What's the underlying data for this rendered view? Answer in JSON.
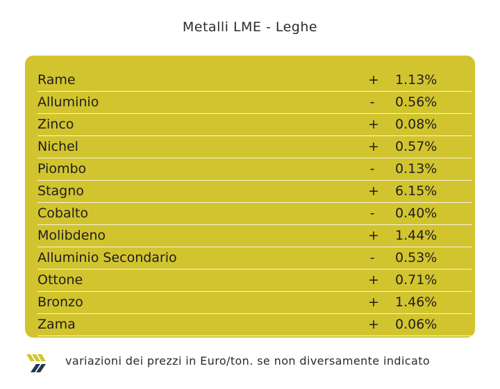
{
  "header": {
    "title": "Metalli LME - Leghe"
  },
  "table": {
    "rows": [
      {
        "name": "Rame",
        "sign": "+",
        "value": "1.13%"
      },
      {
        "name": "Alluminio",
        "sign": "-",
        "value": "0.56%"
      },
      {
        "name": "Zinco",
        "sign": "+",
        "value": "0.08%"
      },
      {
        "name": "Nichel",
        "sign": "+",
        "value": "0.57%"
      },
      {
        "name": "Piombo",
        "sign": "-",
        "value": "0.13%"
      },
      {
        "name": "Stagno",
        "sign": "+",
        "value": "6.15%"
      },
      {
        "name": "Cobalto",
        "sign": "-",
        "value": "0.40%"
      },
      {
        "name": "Molibdeno",
        "sign": "+",
        "value": "1.44%"
      },
      {
        "name": "Alluminio Secondario",
        "sign": "-",
        "value": "0.53%"
      },
      {
        "name": "Ottone",
        "sign": "+",
        "value": "0.71%"
      },
      {
        "name": "Bronzo",
        "sign": "+",
        "value": "1.46%"
      },
      {
        "name": "Zama",
        "sign": "+",
        "value": "0.06%"
      }
    ]
  },
  "footer": {
    "note": "variazioni dei prezzi in Euro/ton. se non diversamente indicato"
  },
  "colors": {
    "panel": "#d2c42f",
    "logo_yellow": "#d2c42f",
    "logo_dark": "#1f3a4a"
  },
  "icons": {
    "logo": "brand-logo-icon"
  }
}
